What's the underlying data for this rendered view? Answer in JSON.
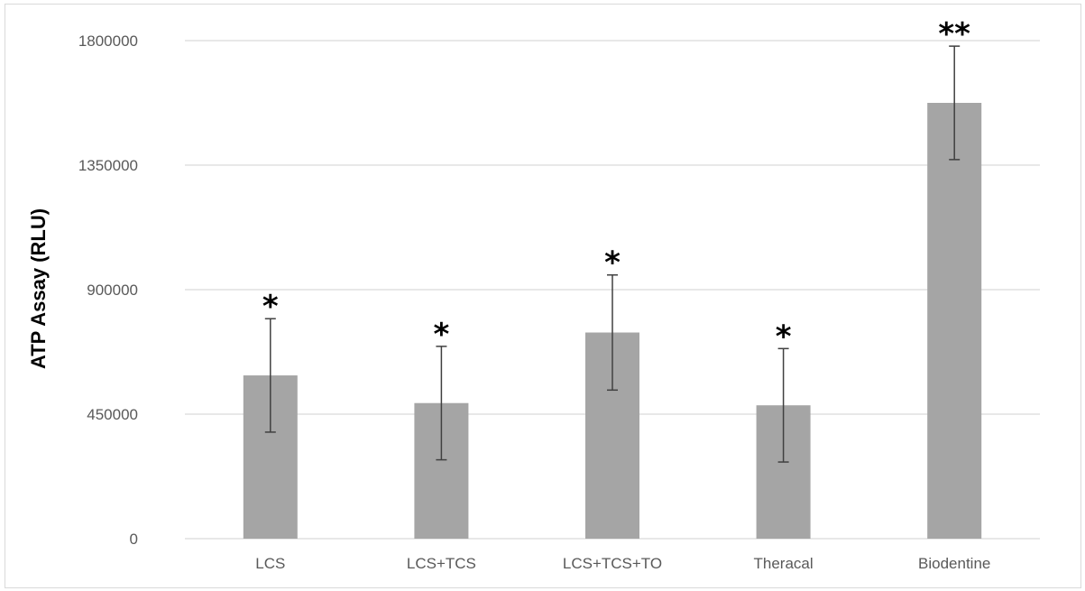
{
  "chart_data": {
    "type": "bar",
    "title": "",
    "xlabel": "",
    "ylabel": "ATP Assay (RLU)",
    "ylim": [
      0,
      1800000
    ],
    "yticks": [
      0,
      450000,
      900000,
      1350000,
      1800000
    ],
    "ytick_labels": [
      "0",
      "450000",
      "900000",
      "1350000",
      "1800000"
    ],
    "grid": true,
    "categories": [
      "LCS",
      "LCS+TCS",
      "LCS+TCS+TO",
      "Theracal",
      "Biodentine"
    ],
    "values": [
      590000,
      490000,
      745000,
      482000,
      1575000
    ],
    "errors": [
      205000,
      205000,
      208000,
      205000,
      205000
    ],
    "annotations": [
      "*",
      "*",
      "*",
      "*",
      "**"
    ],
    "colors": {
      "bar": "#a5a5a5",
      "grid": "#d9d9d9",
      "error": "#404040"
    }
  }
}
